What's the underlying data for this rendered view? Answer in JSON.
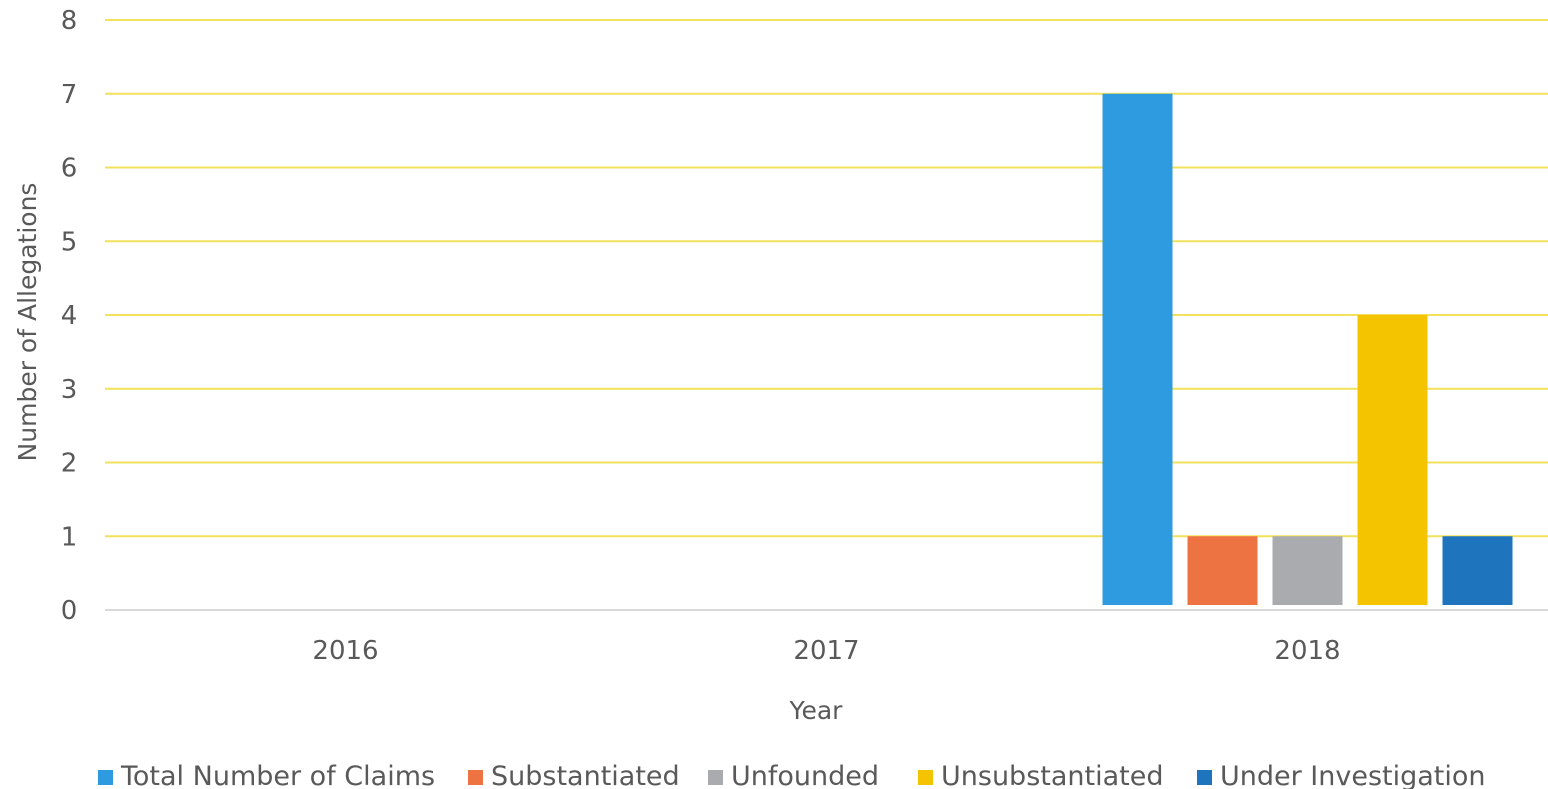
{
  "chart_data": {
    "type": "bar",
    "title": "",
    "xlabel": "Year",
    "ylabel": "Number of Allegations",
    "categories": [
      "2016",
      "2017",
      "2018"
    ],
    "series": [
      {
        "name": "Total Number of Claims",
        "color": "#2E9BE0",
        "values": [
          0,
          0,
          7
        ]
      },
      {
        "name": "Substantiated",
        "color": "#EE7342",
        "values": [
          0,
          0,
          1
        ]
      },
      {
        "name": "Unfounded",
        "color": "#A9ABAE",
        "values": [
          0,
          0,
          1
        ]
      },
      {
        "name": "Unsubstantiated",
        "color": "#F5C400",
        "values": [
          0,
          0,
          4
        ]
      },
      {
        "name": "Under Investigation",
        "color": "#1F74BE",
        "values": [
          0,
          0,
          1
        ]
      }
    ],
    "ylim": [
      0,
      8
    ],
    "yticks": [
      0,
      1,
      2,
      3,
      4,
      5,
      6,
      7,
      8
    ],
    "grid": true,
    "gridline_color": "#F2E15C",
    "legend_position": "bottom"
  }
}
